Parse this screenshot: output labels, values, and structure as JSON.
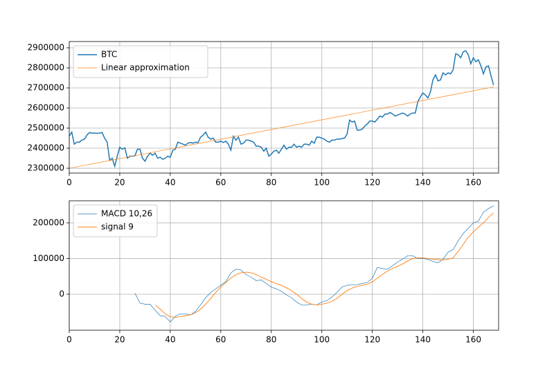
{
  "chart_data": [
    {
      "type": "line",
      "xlim": [
        0,
        170
      ],
      "xticks": [
        0,
        20,
        40,
        60,
        80,
        100,
        120,
        140,
        160
      ],
      "ylim": [
        2276000,
        2931000
      ],
      "yticks": [
        2300000,
        2400000,
        2500000,
        2600000,
        2700000,
        2800000,
        2900000
      ],
      "grid": true,
      "legend": "upper left",
      "series": [
        {
          "name": "BTC",
          "color": "#1f77b4",
          "linewidth": 1.5,
          "x": [
            0,
            1,
            2,
            3,
            4,
            5,
            6,
            7,
            8,
            9,
            10,
            11,
            12,
            13,
            14,
            15,
            16,
            17,
            18,
            19,
            20,
            21,
            22,
            23,
            24,
            25,
            26,
            27,
            28,
            29,
            30,
            31,
            32,
            33,
            34,
            35,
            36,
            37,
            38,
            39,
            40,
            41,
            42,
            43,
            44,
            45,
            46,
            47,
            48,
            49,
            50,
            51,
            52,
            53,
            54,
            55,
            56,
            57,
            58,
            59,
            60,
            61,
            62,
            63,
            64,
            65,
            66,
            67,
            68,
            69,
            70,
            71,
            72,
            73,
            74,
            75,
            76,
            77,
            78,
            79,
            80,
            81,
            82,
            83,
            84,
            85,
            86,
            87,
            88,
            89,
            90,
            91,
            92,
            93,
            94,
            95,
            96,
            97,
            98,
            99,
            100,
            101,
            102,
            103,
            104,
            105,
            106,
            107,
            108,
            109,
            110,
            111,
            112,
            113,
            114,
            115,
            116,
            117,
            118,
            119,
            120,
            121,
            122,
            123,
            124,
            125,
            126,
            127,
            128,
            129,
            130,
            131,
            132,
            133,
            134,
            135,
            136,
            137,
            138,
            139,
            140,
            141,
            142,
            143,
            144,
            145,
            146,
            147,
            148,
            149,
            150,
            151,
            152,
            153,
            154,
            155,
            156,
            157,
            158,
            159,
            160,
            161,
            162,
            163,
            164,
            165,
            166,
            167,
            168
          ],
          "values": [
            2460000,
            2480000,
            2420000,
            2430000,
            2430000,
            2440000,
            2445000,
            2465000,
            2478000,
            2475000,
            2475000,
            2474000,
            2475000,
            2478000,
            2450000,
            2430000,
            2340000,
            2350000,
            2310000,
            2360000,
            2405000,
            2395000,
            2402000,
            2350000,
            2360000,
            2360000,
            2362000,
            2395000,
            2395000,
            2350000,
            2335000,
            2360000,
            2375000,
            2365000,
            2375000,
            2350000,
            2355000,
            2345000,
            2350000,
            2360000,
            2355000,
            2390000,
            2395000,
            2430000,
            2425000,
            2420000,
            2415000,
            2425000,
            2428000,
            2425000,
            2430000,
            2428000,
            2455000,
            2465000,
            2480000,
            2455000,
            2445000,
            2450000,
            2430000,
            2430000,
            2435000,
            2428000,
            2435000,
            2420000,
            2390000,
            2460000,
            2440000,
            2455000,
            2420000,
            2425000,
            2440000,
            2440000,
            2435000,
            2430000,
            2410000,
            2410000,
            2405000,
            2385000,
            2400000,
            2360000,
            2370000,
            2385000,
            2390000,
            2375000,
            2395000,
            2415000,
            2395000,
            2405000,
            2405000,
            2420000,
            2405000,
            2410000,
            2405000,
            2420000,
            2420000,
            2415000,
            2435000,
            2425000,
            2455000,
            2455000,
            2450000,
            2445000,
            2435000,
            2430000,
            2440000,
            2440000,
            2445000,
            2445000,
            2448000,
            2450000,
            2470000,
            2540000,
            2530000,
            2535000,
            2490000,
            2490000,
            2495000,
            2510000,
            2520000,
            2535000,
            2535000,
            2530000,
            2545000,
            2560000,
            2555000,
            2570000,
            2570000,
            2578000,
            2570000,
            2560000,
            2565000,
            2570000,
            2575000,
            2570000,
            2560000,
            2570000,
            2575000,
            2575000,
            2630000,
            2655000,
            2675000,
            2665000,
            2650000,
            2680000,
            2740000,
            2765000,
            2735000,
            2740000,
            2775000,
            2765000,
            2775000,
            2770000,
            2790000,
            2870000,
            2865000,
            2850000,
            2880000,
            2885000,
            2865000,
            2820000,
            2850000,
            2830000,
            2840000,
            2810000,
            2770000,
            2805000,
            2810000,
            2760000,
            2715000
          ]
        },
        {
          "name": "Linear approximation",
          "color": "#ff7f0e",
          "linewidth": 0.7,
          "x": [
            0,
            168
          ],
          "values": [
            2300000,
            2705000
          ]
        }
      ]
    },
    {
      "type": "line",
      "xlim": [
        0,
        170
      ],
      "xticks": [
        0,
        20,
        40,
        60,
        80,
        100,
        120,
        140,
        160
      ],
      "ylim": [
        -101000,
        262000
      ],
      "yticks": [
        0,
        100000,
        200000
      ],
      "grid": true,
      "legend": "upper left",
      "series": [
        {
          "name": "MACD 10,26",
          "color": "#1f77b4",
          "linewidth": 0.7,
          "x": [
            26,
            28,
            30,
            32,
            34,
            36,
            38,
            40,
            42,
            44,
            46,
            48,
            50,
            52,
            54,
            56,
            58,
            60,
            62,
            64,
            66,
            68,
            70,
            72,
            74,
            76,
            78,
            80,
            82,
            84,
            86,
            88,
            90,
            92,
            94,
            96,
            98,
            100,
            102,
            104,
            106,
            108,
            110,
            112,
            114,
            116,
            118,
            120,
            122,
            124,
            126,
            128,
            130,
            132,
            134,
            136,
            138,
            140,
            142,
            144,
            146,
            148,
            150,
            152,
            154,
            156,
            158,
            160,
            162,
            164,
            166,
            168
          ],
          "values": [
            3000,
            -25000,
            -28000,
            -28000,
            -45000,
            -60000,
            -62000,
            -78000,
            -62000,
            -55000,
            -55000,
            -58000,
            -48000,
            -30000,
            -10000,
            5000,
            15000,
            25000,
            35000,
            60000,
            70000,
            68000,
            55000,
            48000,
            38000,
            40000,
            30000,
            20000,
            15000,
            8000,
            -2000,
            -10000,
            -22000,
            -30000,
            -30000,
            -28000,
            -30000,
            -22000,
            -18000,
            -8000,
            5000,
            20000,
            25000,
            26000,
            27000,
            30000,
            33000,
            45000,
            75000,
            72000,
            70000,
            80000,
            90000,
            98000,
            108000,
            108000,
            100000,
            100000,
            98000,
            92000,
            88000,
            98000,
            118000,
            125000,
            150000,
            170000,
            185000,
            200000,
            205000,
            230000,
            240000,
            248000
          ]
        },
        {
          "name": "signal 9",
          "color": "#ff7f0e",
          "linewidth": 0.9,
          "x": [
            34,
            36,
            38,
            40,
            42,
            44,
            46,
            48,
            50,
            52,
            54,
            56,
            58,
            60,
            62,
            64,
            66,
            68,
            70,
            72,
            74,
            76,
            78,
            80,
            82,
            84,
            86,
            88,
            90,
            92,
            94,
            96,
            98,
            100,
            102,
            104,
            106,
            108,
            110,
            112,
            114,
            116,
            118,
            120,
            122,
            124,
            126,
            128,
            130,
            132,
            134,
            136,
            138,
            140,
            142,
            144,
            146,
            148,
            150,
            152,
            154,
            156,
            158,
            160,
            162,
            164,
            166,
            168
          ],
          "values": [
            -30000,
            -42000,
            -55000,
            -63000,
            -65000,
            -63000,
            -60000,
            -58000,
            -52000,
            -42000,
            -28000,
            -12000,
            5000,
            20000,
            33000,
            45000,
            55000,
            60000,
            62000,
            60000,
            55000,
            48000,
            42000,
            35000,
            30000,
            25000,
            18000,
            10000,
            0,
            -12000,
            -22000,
            -28000,
            -30000,
            -28000,
            -25000,
            -20000,
            -12000,
            0,
            10000,
            17000,
            22000,
            25000,
            28000,
            35000,
            45000,
            55000,
            65000,
            73000,
            78000,
            85000,
            93000,
            100000,
            102000,
            102000,
            100000,
            98000,
            97000,
            96000,
            98000,
            102000,
            120000,
            140000,
            160000,
            175000,
            188000,
            200000,
            215000,
            228000
          ]
        }
      ]
    }
  ]
}
